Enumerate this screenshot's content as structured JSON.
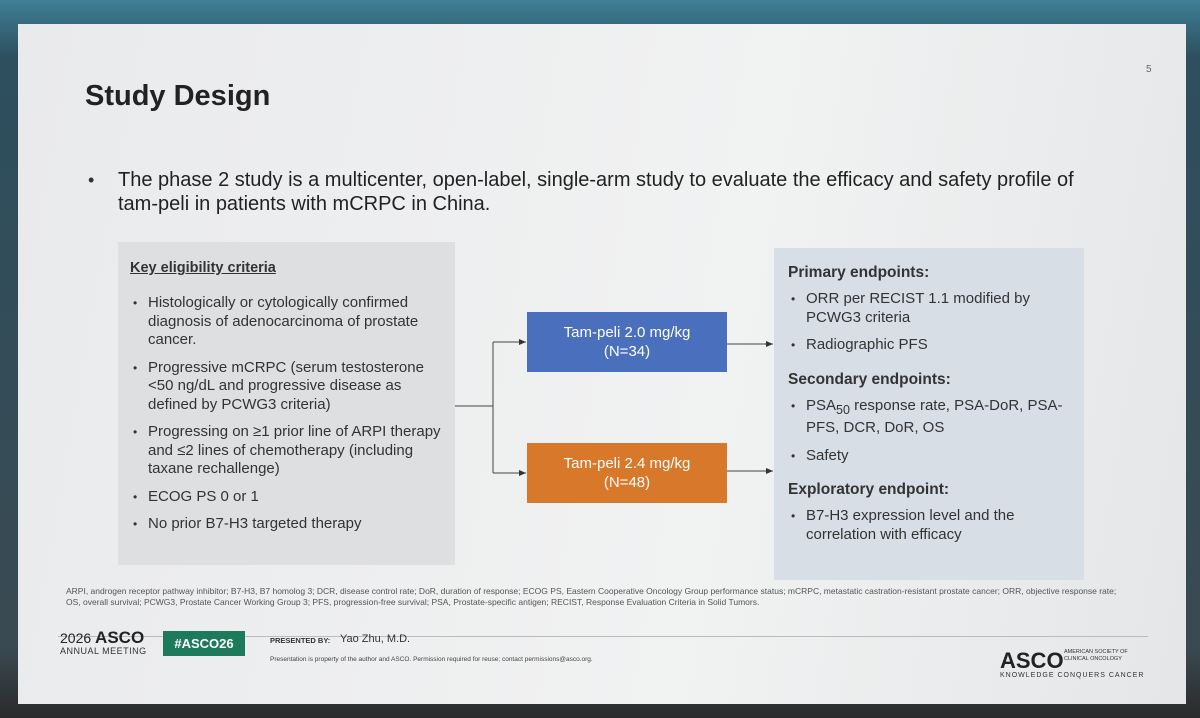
{
  "slide_number": "5",
  "title": "Study Design",
  "intro": "The phase 2 study is a multicenter, open-label, single-arm study to evaluate the efficacy and safety profile of tam-peli in patients with mCRPC in China.",
  "eligibility": {
    "heading": "Key eligibility criteria",
    "items": [
      "Histologically or cytologically confirmed diagnosis of adenocarcinoma of prostate cancer.",
      "Progressive mCRPC (serum testosterone <50 ng/dL and progressive disease as defined by PCWG3 criteria)",
      "Progressing on ≥1 prior line of ARPI therapy and ≤2 lines of chemotherapy (including taxane rechallenge)",
      "ECOG PS 0 or 1",
      "No prior B7-H3 targeted therapy"
    ]
  },
  "arms": [
    {
      "label": "Tam-peli 2.0 mg/kg",
      "n": "(N=34)"
    },
    {
      "label": "Tam-peli 2.4 mg/kg",
      "n": "(N=48)"
    }
  ],
  "endpoints": [
    {
      "heading": "Primary endpoints:",
      "items": [
        [
          "ORR per RECIST 1.1 modified by PCWG3 criteria"
        ],
        [
          "Radiographic PFS"
        ]
      ]
    },
    {
      "heading": "Secondary endpoints:",
      "items": [
        [
          "PSA",
          "50",
          " response rate, PSA-DoR, PSA-PFS, DCR, DoR, OS"
        ],
        [
          "Safety"
        ]
      ]
    },
    {
      "heading": "Exploratory endpoint:",
      "items": [
        [
          "B7-H3 expression level and the correlation with efficacy"
        ]
      ]
    }
  ],
  "footnote": "ARPI, androgen receptor pathway inhibitor; B7-H3, B7 homolog 3; DCR, disease control rate; DoR, duration of response; ECOG PS, Eastern Cooperative Oncology Group performance status; mCRPC, metastatic castration-resistant prostate cancer; ORR, objective response rate; OS, overall survival; PCWG3, Prostate Cancer Working Group 3; PFS, progression-free survival; PSA, Prostate-specific antigen; RECIST, Response Evaluation Criteria in Solid Tumors.",
  "footer": {
    "year": "2026",
    "brand": "ASCO",
    "meeting": "ANNUAL MEETING",
    "hashtag": "#ASCO26",
    "presented_by": "PRESENTED BY:",
    "presenter": "Yao Zhu, M.D.",
    "notice": "Presentation is property of the author and ASCO. Permission required for reuse; contact permissions@asco.org.",
    "logo": "ASCO",
    "society": "AMERICAN SOCIETY OF CLINICAL ONCOLOGY",
    "tagline": "KNOWLEDGE CONQUERS CANCER"
  }
}
